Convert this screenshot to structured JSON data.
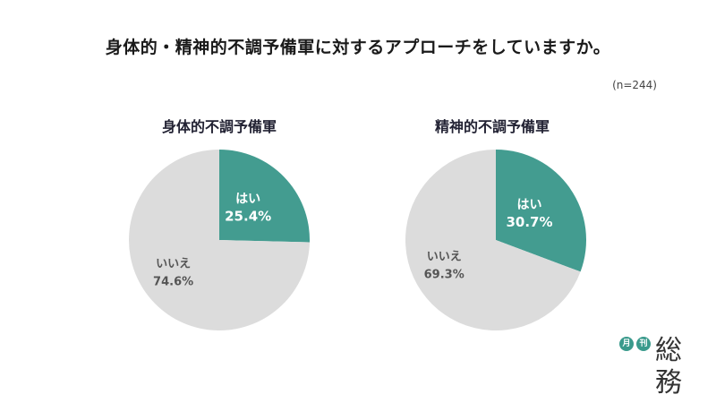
{
  "title": "身体的・精神的不調予備軍に対するアプローチをしていますか。",
  "sample_size": "(n=244)",
  "colors": {
    "yes": "#439c90",
    "no": "#dcdcdc",
    "yes_text": "#ffffff",
    "no_text": "#555555"
  },
  "chart_data": [
    {
      "type": "pie",
      "title": "身体的不調予備軍",
      "slices": [
        {
          "label": "はい",
          "value": 25.4,
          "value_label": "25.4%"
        },
        {
          "label": "いいえ",
          "value": 74.6,
          "value_label": "74.6%"
        }
      ]
    },
    {
      "type": "pie",
      "title": "精神的不調予備軍",
      "slices": [
        {
          "label": "はい",
          "value": 30.7,
          "value_label": "30.7%"
        },
        {
          "label": "いいえ",
          "value": 69.3,
          "value_label": "69.3%"
        }
      ]
    }
  ],
  "logo": {
    "badge1": "月",
    "badge2": "刊",
    "wordmark": "総務"
  }
}
